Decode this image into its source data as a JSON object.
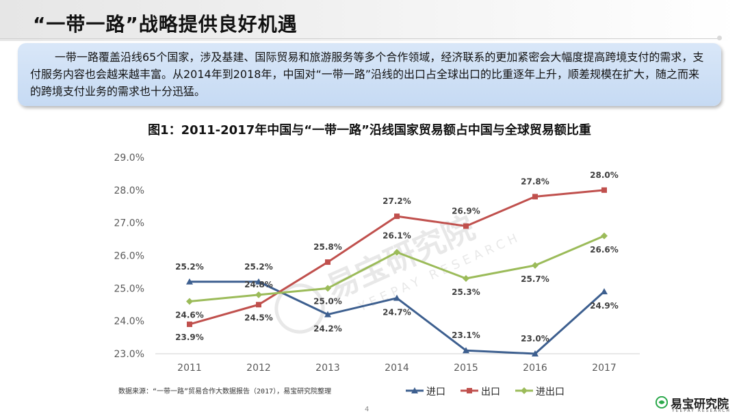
{
  "page": {
    "title": "“一带一路”战略提供良好机遇",
    "intro": "一带一路覆盖沿线65个国家，涉及基建、国际贸易和旅游服务等多个合作领域，经济联系的更加紧密会大幅度提高跨境支付的需求，支付服务内容也会越来越丰富。从2014年到2018年，中国对“一带一路”沿线的出口占全球出口的比重逐年上升，顺差规模在扩大，随之而来的跨境支付业务的需求也十分迅猛。",
    "source": "数据来源：“一带一路”贸易合作大数据报告（2017），易宝研究院整理",
    "page_number": "4"
  },
  "brand": {
    "name": "易宝研究院",
    "sub": "YEEPAY RESEARCH",
    "watermark_name": "易宝研究院",
    "watermark_sub": "YEEPAY RESEARCH",
    "icon": "yeepay-logo-icon",
    "color": "#2aa84a"
  },
  "chart_data": {
    "type": "line",
    "title": "图1：2011-2017年中国与“一带一路”沿线国家贸易额占中国与全球贸易额比重",
    "x": [
      "2011",
      "2012",
      "2013",
      "2014",
      "2015",
      "2016",
      "2017"
    ],
    "ylim": [
      23.0,
      29.0
    ],
    "yticks": [
      "23.0%",
      "24.0%",
      "25.0%",
      "26.0%",
      "27.0%",
      "28.0%",
      "29.0%"
    ],
    "grid": false,
    "legend_position": "bottom",
    "series": [
      {
        "name": "进口",
        "color": "#3d5f8f",
        "marker": "triangle",
        "values": [
          25.2,
          25.2,
          24.2,
          24.7,
          23.1,
          23.0,
          24.9
        ],
        "labels": [
          "25.2%",
          "25.2%",
          "24.2%",
          "24.7%",
          "23.1%",
          "23.0%",
          "24.9%"
        ]
      },
      {
        "name": "出口",
        "color": "#c0504d",
        "marker": "square",
        "values": [
          23.9,
          24.5,
          25.8,
          27.2,
          26.9,
          27.8,
          28.0
        ],
        "labels": [
          "23.9%",
          "24.5%",
          "25.8%",
          "27.2%",
          "26.9%",
          "27.8%",
          "28.0%"
        ]
      },
      {
        "name": "进出口",
        "color": "#9bbb59",
        "marker": "diamond",
        "values": [
          24.6,
          24.8,
          25.0,
          26.1,
          25.3,
          25.7,
          26.6
        ],
        "labels": [
          "24.6%",
          "24.8%",
          "25.0%",
          "26.1%",
          "25.3%",
          "25.7%",
          "26.6%"
        ]
      }
    ]
  }
}
